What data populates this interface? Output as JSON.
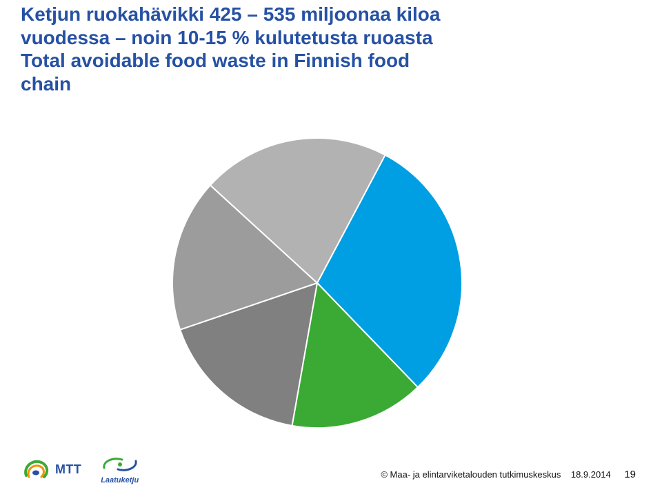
{
  "title_line1": "Ketjun ruokahävikki 425 – 535 miljoonaa kiloa",
  "title_line2": "vuodessa – noin 10-15 % kulutetusta ruoasta",
  "title_line3": "Total avoidable food waste in Finnish food",
  "title_line4": "chain",
  "title_color": "#2651a3",
  "title_fontsize": 28,
  "chart": {
    "type": "pie",
    "slices": [
      {
        "value": 30,
        "color": "#009fe3"
      },
      {
        "value": 15,
        "color": "#3aaa35"
      },
      {
        "value": 17,
        "color": "#808080"
      },
      {
        "value": 17,
        "color": "#9c9c9c"
      },
      {
        "value": 21,
        "color": "#b2b2b2"
      }
    ],
    "border_color": "#ffffff",
    "border_width": 2,
    "start_angle_deg": -62
  },
  "footer": {
    "copyright": "© Maa- ja elintarviketalouden tutkimuskeskus",
    "date": "18.9.2014",
    "page": "19"
  },
  "logos": {
    "mtt": {
      "text": "MTT",
      "green": "#3aaa35",
      "blue": "#2651a3",
      "orange": "#f39200"
    },
    "laatuketju": {
      "text": "Laatuketju",
      "green": "#3aaa35",
      "blue": "#2651a3"
    }
  }
}
